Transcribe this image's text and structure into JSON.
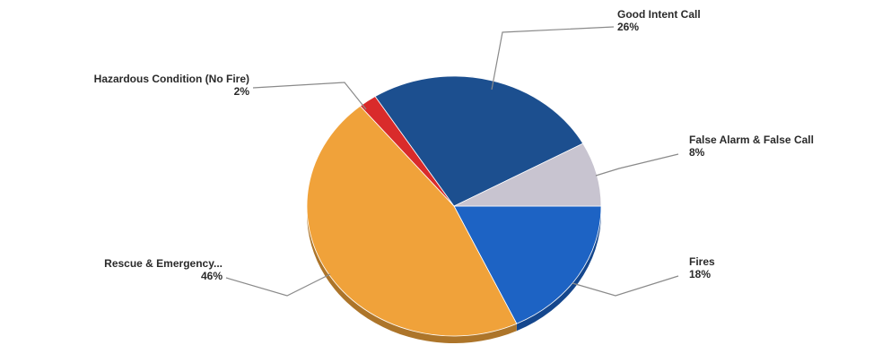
{
  "chart_data": {
    "type": "pie",
    "slices": [
      {
        "label": "Fires",
        "value": 18,
        "display": "18%",
        "color": "#1d63c4"
      },
      {
        "label": "Rescue & Emergency...",
        "value": 46,
        "display": "46%",
        "color": "#f0a23a"
      },
      {
        "label": "Hazardous Condition (No Fire)",
        "value": 2,
        "display": "2%",
        "color": "#d92b2b"
      },
      {
        "label": "Good Intent Call",
        "value": 26,
        "display": "26%",
        "color": "#1c4f8f"
      },
      {
        "label": "False Alarm & False Call",
        "value": 8,
        "display": "8%",
        "color": "#c8c4d0"
      }
    ],
    "start_angle_deg": 0,
    "direction": "clockwise",
    "style": "3d-tilted",
    "legend": "none",
    "title": ""
  }
}
